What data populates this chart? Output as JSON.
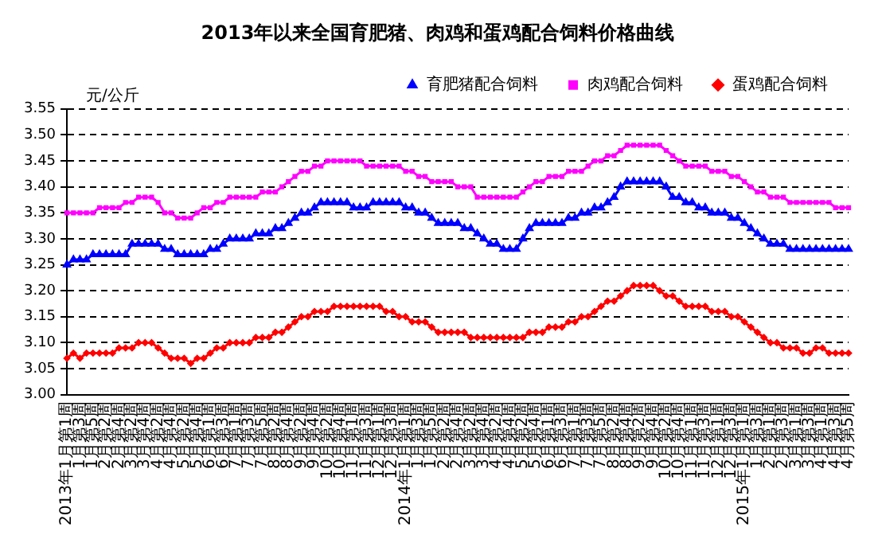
{
  "chart_data": {
    "type": "line",
    "title": "2013年以来全国育肥猪、肉鸡和蛋鸡配合饲料价格曲线",
    "ylabel": "元/公斤",
    "categories": [
      "2013年1月第1周",
      null,
      "1月第3周",
      null,
      "1月第5周",
      null,
      "2月第2周",
      null,
      "2月第4周",
      null,
      "3月第2周",
      null,
      "3月第4周",
      null,
      "4月第2周",
      null,
      "4月第4周",
      null,
      "5月第2周",
      null,
      "5月第4周",
      null,
      "6月第1周",
      null,
      "6月第3周",
      null,
      "7月第1周",
      null,
      "7月第3周",
      null,
      "7月第5周",
      null,
      "8月第2周",
      null,
      "8月第4周",
      null,
      "9月第2周",
      null,
      "9月第4周",
      null,
      "10月第2周",
      null,
      "10月第4周",
      null,
      "11月第1周",
      null,
      "11月第3周",
      null,
      "12月第1周",
      null,
      "12月第3周",
      null,
      "2014年1月第1周",
      null,
      "1月第3周",
      null,
      "1月第5周",
      null,
      "2月第2周",
      null,
      "2月第4周",
      null,
      "3月第2周",
      null,
      "3月第4周",
      null,
      "4月第2周",
      null,
      "4月第4周",
      null,
      "5月第2周",
      null,
      "5月第4周",
      null,
      "6月第1周",
      null,
      "6月第3周",
      null,
      "7月第1周",
      null,
      "7月第3周",
      null,
      "7月第5周",
      null,
      "8月第2周",
      null,
      "8月第4周",
      null,
      "9月第2周",
      null,
      "9月第4周",
      null,
      "10月第2周",
      null,
      "10月第4周",
      null,
      "11月第1周",
      null,
      "11月第3周",
      null,
      "12月第1周",
      null,
      "12月第3周",
      null,
      "2015年1月第1周",
      null,
      "1月第3周",
      null,
      "2月第1周",
      null,
      "2月第3周",
      null,
      "3月第1周",
      null,
      "3月第3周",
      null,
      "4月第1周",
      null,
      "4月第3周",
      null,
      "4月第5周"
    ],
    "series": [
      {
        "name": "育肥猪配合饲料",
        "color": "#0000ff",
        "marker": "triangle",
        "values": [
          3.25,
          3.26,
          3.26,
          3.26,
          3.27,
          3.27,
          3.27,
          3.27,
          3.27,
          3.27,
          3.29,
          3.29,
          3.29,
          3.29,
          3.29,
          3.28,
          3.28,
          3.27,
          3.27,
          3.27,
          3.27,
          3.27,
          3.28,
          3.28,
          3.29,
          3.3,
          3.3,
          3.3,
          3.3,
          3.31,
          3.31,
          3.31,
          3.32,
          3.32,
          3.33,
          3.34,
          3.35,
          3.35,
          3.36,
          3.37,
          3.37,
          3.37,
          3.37,
          3.37,
          3.36,
          3.36,
          3.36,
          3.37,
          3.37,
          3.37,
          3.37,
          3.37,
          3.36,
          3.36,
          3.35,
          3.35,
          3.34,
          3.33,
          3.33,
          3.33,
          3.33,
          3.32,
          3.32,
          3.31,
          3.3,
          3.29,
          3.29,
          3.28,
          3.28,
          3.28,
          3.3,
          3.32,
          3.33,
          3.33,
          3.33,
          3.33,
          3.33,
          3.34,
          3.34,
          3.35,
          3.35,
          3.36,
          3.36,
          3.37,
          3.38,
          3.4,
          3.41,
          3.41,
          3.41,
          3.41,
          3.41,
          3.41,
          3.4,
          3.38,
          3.38,
          3.37,
          3.37,
          3.36,
          3.36,
          3.35,
          3.35,
          3.35,
          3.34,
          3.34,
          3.33,
          3.32,
          3.31,
          3.3,
          3.29,
          3.29,
          3.29,
          3.28,
          3.28,
          3.28,
          3.28,
          3.28,
          3.28,
          3.28,
          3.28,
          3.28,
          3.28
        ]
      },
      {
        "name": "肉鸡配合饲料",
        "color": "#ff00ff",
        "marker": "square",
        "values": [
          3.35,
          3.35,
          3.35,
          3.35,
          3.35,
          3.36,
          3.36,
          3.36,
          3.36,
          3.37,
          3.37,
          3.38,
          3.38,
          3.38,
          3.37,
          3.35,
          3.35,
          3.34,
          3.34,
          3.34,
          3.35,
          3.36,
          3.36,
          3.37,
          3.37,
          3.38,
          3.38,
          3.38,
          3.38,
          3.38,
          3.39,
          3.39,
          3.39,
          3.4,
          3.41,
          3.42,
          3.43,
          3.43,
          3.44,
          3.44,
          3.45,
          3.45,
          3.45,
          3.45,
          3.45,
          3.45,
          3.44,
          3.44,
          3.44,
          3.44,
          3.44,
          3.44,
          3.43,
          3.43,
          3.42,
          3.42,
          3.41,
          3.41,
          3.41,
          3.41,
          3.4,
          3.4,
          3.4,
          3.38,
          3.38,
          3.38,
          3.38,
          3.38,
          3.38,
          3.38,
          3.39,
          3.4,
          3.41,
          3.41,
          3.42,
          3.42,
          3.42,
          3.43,
          3.43,
          3.43,
          3.44,
          3.45,
          3.45,
          3.46,
          3.46,
          3.47,
          3.48,
          3.48,
          3.48,
          3.48,
          3.48,
          3.48,
          3.47,
          3.46,
          3.45,
          3.44,
          3.44,
          3.44,
          3.44,
          3.43,
          3.43,
          3.43,
          3.42,
          3.42,
          3.41,
          3.4,
          3.39,
          3.39,
          3.38,
          3.38,
          3.38,
          3.37,
          3.37,
          3.37,
          3.37,
          3.37,
          3.37,
          3.37,
          3.36,
          3.36,
          3.36
        ]
      },
      {
        "name": "蛋鸡配合饲料",
        "color": "#ff0000",
        "marker": "diamond",
        "values": [
          3.07,
          3.08,
          3.07,
          3.08,
          3.08,
          3.08,
          3.08,
          3.08,
          3.09,
          3.09,
          3.09,
          3.1,
          3.1,
          3.1,
          3.09,
          3.08,
          3.07,
          3.07,
          3.07,
          3.06,
          3.07,
          3.07,
          3.08,
          3.09,
          3.09,
          3.1,
          3.1,
          3.1,
          3.1,
          3.11,
          3.11,
          3.11,
          3.12,
          3.12,
          3.13,
          3.14,
          3.15,
          3.15,
          3.16,
          3.16,
          3.16,
          3.17,
          3.17,
          3.17,
          3.17,
          3.17,
          3.17,
          3.17,
          3.17,
          3.16,
          3.16,
          3.15,
          3.15,
          3.14,
          3.14,
          3.14,
          3.13,
          3.12,
          3.12,
          3.12,
          3.12,
          3.12,
          3.11,
          3.11,
          3.11,
          3.11,
          3.11,
          3.11,
          3.11,
          3.11,
          3.11,
          3.12,
          3.12,
          3.12,
          3.13,
          3.13,
          3.13,
          3.14,
          3.14,
          3.15,
          3.15,
          3.16,
          3.17,
          3.18,
          3.18,
          3.19,
          3.2,
          3.21,
          3.21,
          3.21,
          3.21,
          3.2,
          3.19,
          3.19,
          3.18,
          3.17,
          3.17,
          3.17,
          3.17,
          3.16,
          3.16,
          3.16,
          3.15,
          3.15,
          3.14,
          3.13,
          3.12,
          3.11,
          3.1,
          3.1,
          3.09,
          3.09,
          3.09,
          3.08,
          3.08,
          3.09,
          3.09,
          3.08,
          3.08,
          3.08,
          3.08
        ]
      }
    ],
    "ylim": [
      3.0,
      3.55
    ],
    "yticks": [
      {
        "value": 3.0,
        "label": "3.00"
      },
      {
        "value": 3.05,
        "label": "3.05"
      },
      {
        "value": 3.1,
        "label": "3.10"
      },
      {
        "value": 3.15,
        "label": "3.15"
      },
      {
        "value": 3.2,
        "label": "3.20"
      },
      {
        "value": 3.25,
        "label": "3.25"
      },
      {
        "value": 3.3,
        "label": "3.30"
      },
      {
        "value": 3.35,
        "label": "3.35"
      },
      {
        "value": 3.4,
        "label": "3.40"
      },
      {
        "value": 3.45,
        "label": "3.45"
      },
      {
        "value": 3.5,
        "label": "3.50"
      },
      {
        "value": 3.55,
        "label": "3.55"
      }
    ],
    "grid": "y",
    "legend": "top right"
  }
}
